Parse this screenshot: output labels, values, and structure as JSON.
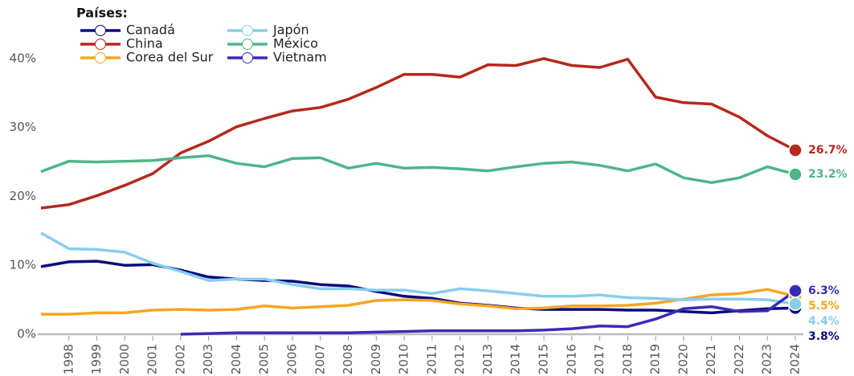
{
  "chart_data": {
    "type": "line",
    "legend_title": "Países:",
    "legend": "top-left",
    "x": [
      1997,
      1998,
      1999,
      2000,
      2001,
      2002,
      2003,
      2004,
      2005,
      2006,
      2007,
      2008,
      2009,
      2010,
      2011,
      2012,
      2013,
      2014,
      2015,
      2016,
      2017,
      2018,
      2019,
      2020,
      2021,
      2022,
      2023,
      2024
    ],
    "xlim": [
      1997,
      2024
    ],
    "xticks": [
      1998,
      1999,
      2000,
      2001,
      2002,
      2003,
      2004,
      2005,
      2006,
      2007,
      2008,
      2009,
      2010,
      2011,
      2012,
      2013,
      2014,
      2015,
      2016,
      2017,
      2018,
      2019,
      2020,
      2021,
      2022,
      2023,
      2024
    ],
    "ylim": [
      0,
      45
    ],
    "yticks": [
      {
        "value": 0,
        "label": "0%"
      },
      {
        "value": 10,
        "label": "10%"
      },
      {
        "value": 20,
        "label": "20%"
      },
      {
        "value": 30,
        "label": "30%"
      },
      {
        "value": 40,
        "label": "40%"
      }
    ],
    "series": [
      {
        "name": "Canadá",
        "color": "#0b0b7d",
        "values": [
          9.8,
          10.5,
          10.6,
          10.0,
          10.1,
          9.3,
          8.3,
          8.0,
          7.8,
          7.7,
          7.2,
          7.0,
          6.2,
          5.5,
          5.2,
          4.5,
          4.2,
          3.8,
          3.6,
          3.6,
          3.6,
          3.5,
          3.5,
          3.3,
          3.1,
          3.4,
          3.7,
          3.8
        ],
        "value_labels": [
          null,
          null,
          null,
          null,
          null,
          null,
          null,
          null,
          null,
          null,
          null,
          null,
          null,
          null,
          null,
          null,
          null,
          null,
          null,
          null,
          null,
          null,
          null,
          null,
          null,
          null,
          null,
          "3.8%"
        ]
      },
      {
        "name": "China",
        "color": "#b5281e",
        "values": [
          18.3,
          18.8,
          20.1,
          21.6,
          23.3,
          26.3,
          28.0,
          30.1,
          31.3,
          32.4,
          32.9,
          34.1,
          35.8,
          37.7,
          37.7,
          37.3,
          39.1,
          39.0,
          40.0,
          39.0,
          38.7,
          39.9,
          34.4,
          33.6,
          33.4,
          31.5,
          28.8,
          26.7
        ],
        "value_labels": [
          null,
          null,
          null,
          null,
          null,
          null,
          null,
          null,
          null,
          null,
          null,
          null,
          null,
          null,
          null,
          null,
          null,
          null,
          null,
          null,
          null,
          null,
          null,
          null,
          null,
          null,
          null,
          "26.7%"
        ]
      },
      {
        "name": "Corea del Sur",
        "color": "#f5a623",
        "values": [
          2.9,
          2.9,
          3.1,
          3.1,
          3.5,
          3.6,
          3.5,
          3.6,
          4.1,
          3.8,
          4.0,
          4.2,
          4.9,
          5.0,
          4.9,
          4.4,
          4.1,
          3.7,
          3.8,
          4.1,
          4.1,
          4.2,
          4.5,
          5.1,
          5.7,
          5.9,
          6.5,
          5.5
        ],
        "value_labels": [
          null,
          null,
          null,
          null,
          null,
          null,
          null,
          null,
          null,
          null,
          null,
          null,
          null,
          null,
          null,
          null,
          null,
          null,
          null,
          null,
          null,
          null,
          null,
          null,
          null,
          null,
          null,
          "5.5%"
        ]
      },
      {
        "name": "Japón",
        "color": "#87ceeb",
        "values": [
          14.7,
          12.4,
          12.3,
          11.9,
          10.3,
          9.1,
          7.8,
          8.0,
          8.0,
          7.2,
          6.6,
          6.6,
          6.4,
          6.4,
          5.9,
          6.6,
          6.3,
          5.9,
          5.5,
          5.5,
          5.7,
          5.3,
          5.2,
          5.0,
          5.1,
          5.1,
          5.0,
          4.4
        ],
        "value_labels": [
          null,
          null,
          null,
          null,
          null,
          null,
          null,
          null,
          null,
          null,
          null,
          null,
          null,
          null,
          null,
          null,
          null,
          null,
          null,
          null,
          null,
          null,
          null,
          null,
          null,
          null,
          null,
          "4.4%"
        ]
      },
      {
        "name": "México",
        "color": "#4fb58a",
        "values": [
          23.6,
          25.1,
          25.0,
          25.1,
          25.2,
          25.6,
          25.9,
          24.8,
          24.3,
          25.5,
          25.6,
          24.1,
          24.8,
          24.1,
          24.2,
          24.0,
          23.7,
          24.3,
          24.8,
          25.0,
          24.5,
          23.7,
          24.7,
          22.7,
          22.0,
          22.7,
          24.3,
          23.2
        ],
        "value_labels": [
          null,
          null,
          null,
          null,
          null,
          null,
          null,
          null,
          null,
          null,
          null,
          null,
          null,
          null,
          null,
          null,
          null,
          null,
          null,
          null,
          null,
          null,
          null,
          null,
          null,
          null,
          null,
          "23.2%"
        ]
      },
      {
        "name": "Vietnam",
        "color": "#3a2bb5",
        "values": [
          null,
          null,
          null,
          null,
          null,
          0.0,
          0.1,
          0.2,
          0.2,
          0.2,
          0.2,
          0.2,
          0.3,
          0.4,
          0.5,
          0.5,
          0.5,
          0.5,
          0.6,
          0.8,
          1.2,
          1.1,
          2.2,
          3.7,
          4.0,
          3.3,
          3.4,
          6.3
        ],
        "value_labels": [
          null,
          null,
          null,
          null,
          null,
          null,
          null,
          null,
          null,
          null,
          null,
          null,
          null,
          null,
          null,
          null,
          null,
          null,
          null,
          null,
          null,
          null,
          null,
          null,
          null,
          null,
          null,
          "6.3%"
        ]
      }
    ]
  }
}
